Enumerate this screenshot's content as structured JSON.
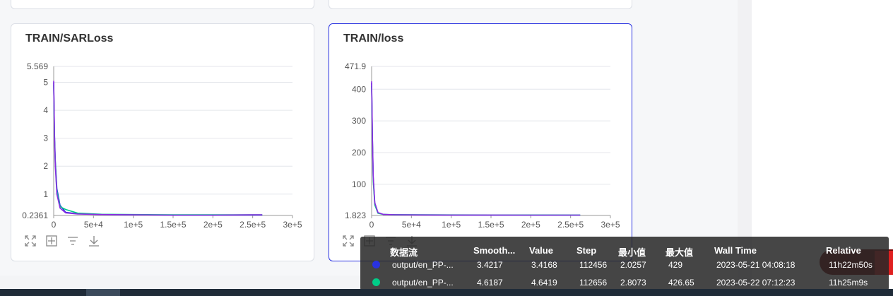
{
  "charts": [
    {
      "title": "TRAIN/SARLoss",
      "y_ticks": [
        "5.569",
        "5",
        "4",
        "3",
        "2",
        "1",
        "0.2361"
      ],
      "x_ticks": [
        "0",
        "5e+4",
        "1e+5",
        "1.5e+5",
        "2e+5",
        "2.5e+5",
        "3e+5"
      ]
    },
    {
      "title": "TRAIN/loss",
      "y_ticks": [
        "471.9",
        "400",
        "300",
        "200",
        "100",
        "1.823"
      ],
      "x_ticks": [
        "0",
        "5e+4",
        "1e+5",
        "1.5e+5",
        "2e+5",
        "2.5e+5",
        "3e+5"
      ]
    }
  ],
  "chart_data": [
    {
      "type": "line",
      "title": "TRAIN/SARLoss",
      "ylim": [
        0.2361,
        5.569
      ],
      "xlim": [
        0,
        300000
      ],
      "grid": true,
      "series": [
        {
          "color": "#2932e1",
          "x": [
            0,
            1000,
            2000,
            4000,
            8000,
            15000,
            30000,
            60000,
            100000,
            150000,
            200000,
            250000,
            262000
          ],
          "y": [
            5.0,
            3.2,
            2.2,
            1.2,
            0.6,
            0.35,
            0.3,
            0.27,
            0.26,
            0.25,
            0.25,
            0.25,
            0.25
          ]
        },
        {
          "color": "#00cc88",
          "x": [
            0,
            1000,
            2000,
            4000,
            8000,
            15000,
            30000,
            60000,
            100000,
            150000,
            200000,
            250000,
            262000
          ],
          "y": [
            4.9,
            3.0,
            2.1,
            1.1,
            0.55,
            0.45,
            0.32,
            0.28,
            0.27,
            0.26,
            0.26,
            0.26,
            0.26
          ]
        },
        {
          "color": "#8a2be2",
          "x": [
            0,
            1000,
            2000,
            4000,
            8000,
            15000,
            30000,
            60000,
            100000,
            150000,
            200000,
            250000,
            262000
          ],
          "y": [
            5.05,
            3.1,
            2.0,
            1.0,
            0.5,
            0.33,
            0.29,
            0.27,
            0.26,
            0.25,
            0.25,
            0.26,
            0.26
          ]
        }
      ]
    },
    {
      "type": "line",
      "title": "TRAIN/loss",
      "ylim": [
        1.823,
        471.9
      ],
      "xlim": [
        0,
        300000
      ],
      "grid": true,
      "series": [
        {
          "color": "#2932e1",
          "x": [
            0,
            1000,
            2000,
            4000,
            8000,
            15000,
            30000,
            60000,
            100000,
            150000,
            200000,
            250000,
            262000
          ],
          "y": [
            420,
            250,
            120,
            40,
            10,
            5,
            4,
            3.5,
            3.3,
            3.2,
            3.1,
            3.0,
            3.0
          ]
        },
        {
          "color": "#00cc88",
          "x": [
            0,
            1000,
            2000,
            4000,
            8000,
            15000,
            30000,
            60000,
            100000,
            150000,
            200000,
            250000,
            262000
          ],
          "y": [
            410,
            240,
            110,
            35,
            9,
            5,
            4.2,
            3.8,
            3.6,
            3.4,
            3.3,
            3.2,
            3.2
          ]
        },
        {
          "color": "#8a2be2",
          "x": [
            0,
            1000,
            2000,
            4000,
            8000,
            15000,
            30000,
            60000,
            100000,
            150000,
            200000,
            250000,
            262000
          ],
          "y": [
            425,
            260,
            125,
            42,
            11,
            5,
            4,
            3.4,
            3.2,
            3.1,
            3.0,
            3.0,
            3.0
          ]
        }
      ]
    }
  ],
  "tooltip": {
    "headers": {
      "run": "数据流",
      "smooth": "Smooth...",
      "value": "Value",
      "step": "Step",
      "min": "最小值",
      "max": "最大值",
      "wall": "Wall Time",
      "relative": "Relative"
    },
    "rows": [
      {
        "color": "#2932e1",
        "run": "output/en_PP-...",
        "smooth": "3.4217",
        "value": "3.4168",
        "step": "112456",
        "min": "2.0257",
        "max": "429",
        "wall": "2023-05-21 04:08:18",
        "relative": "11h22m50s"
      },
      {
        "color": "#00cc88",
        "run": "output/en_PP-...",
        "smooth": "4.6187",
        "value": "4.6419",
        "step": "112656",
        "min": "2.8073",
        "max": "426.65",
        "wall": "2023-05-22 07:12:23",
        "relative": "11h25m9s"
      }
    ]
  }
}
